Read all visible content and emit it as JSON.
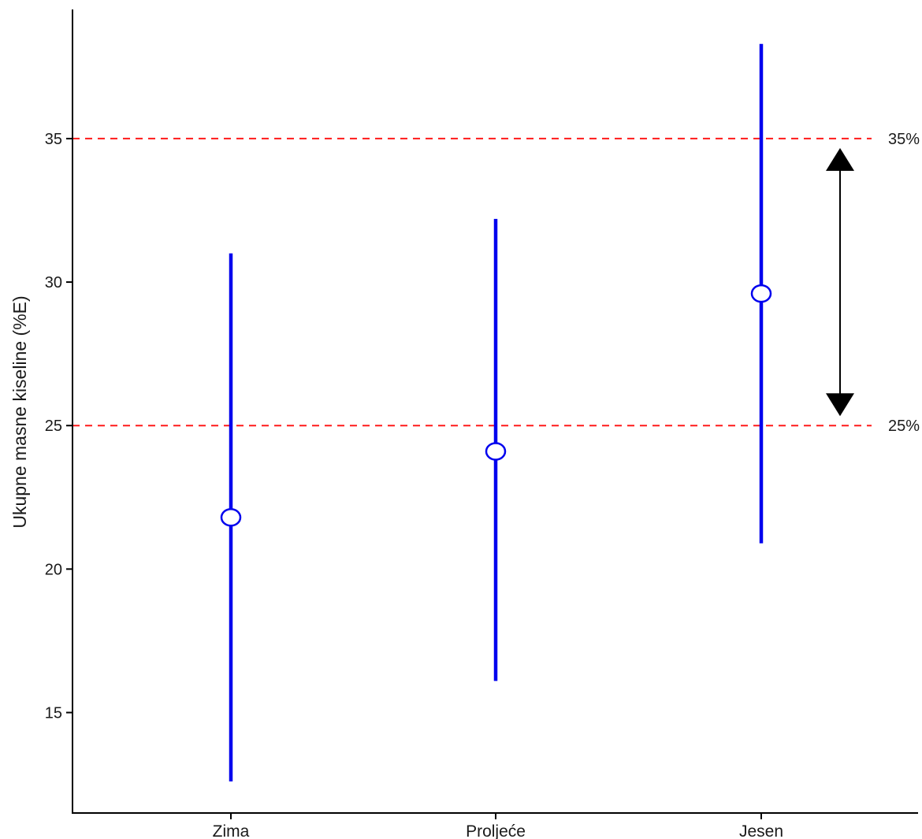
{
  "chart_data": {
    "type": "errorbar",
    "title": "",
    "xlabel": "",
    "ylabel": "Ukupne masne kiseline (%E)",
    "ylim": [
      11.5,
      39.5
    ],
    "yticks": [
      15,
      20,
      25,
      30,
      35
    ],
    "categories": [
      "Zima",
      "Proljeće",
      "Jesen"
    ],
    "series": [
      {
        "points": [
          {
            "category": "Zima",
            "mean": 21.8,
            "low": 12.6,
            "high": 31.0
          },
          {
            "category": "Proljeće",
            "mean": 24.1,
            "low": 16.1,
            "high": 32.2
          },
          {
            "category": "Jesen",
            "mean": 29.6,
            "low": 20.9,
            "high": 38.3
          }
        ],
        "color": "#0000ee"
      }
    ],
    "reference_lines": [
      {
        "value": 35,
        "label": "35%",
        "color": "#ff1a1a",
        "style": "dashed"
      },
      {
        "value": 25,
        "label": "25%",
        "color": "#ff1a1a",
        "style": "dashed"
      }
    ],
    "range_arrow": {
      "from": 25,
      "to": 35,
      "color": "#000000"
    },
    "grid": false,
    "legend": "none"
  }
}
